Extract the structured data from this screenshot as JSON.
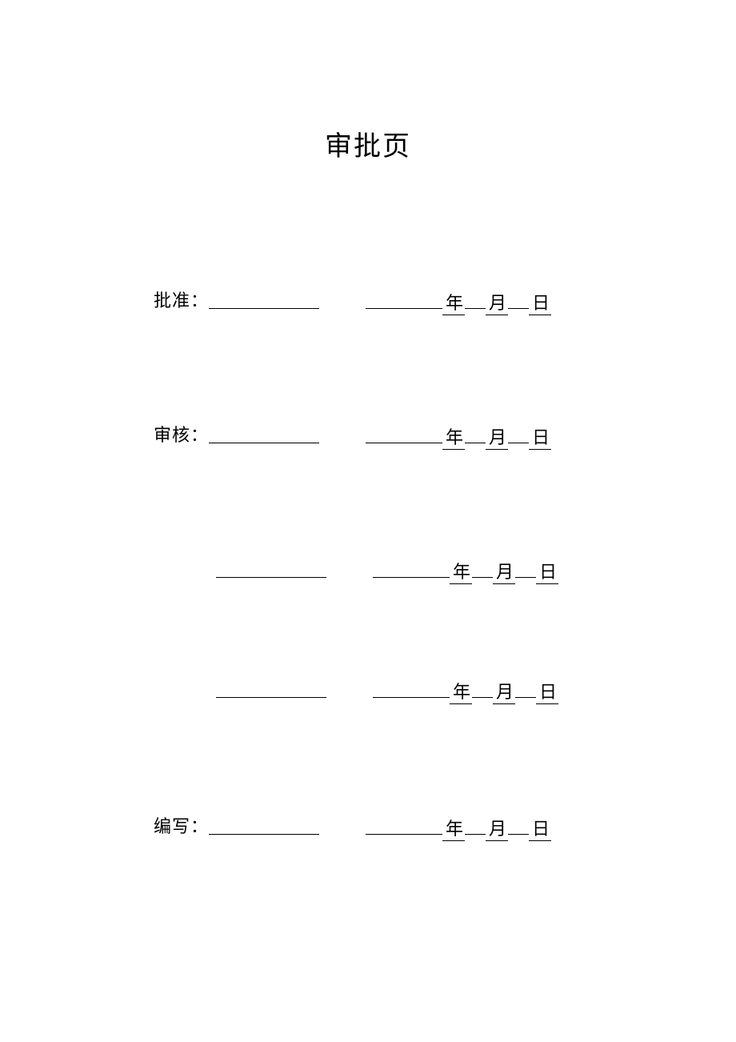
{
  "page": {
    "title": "审批页",
    "title_fontsize": 34,
    "body_fontsize": 22,
    "text_color": "#000000",
    "background_color": "#ffffff",
    "underline_color": "#000000",
    "underline_width": 1.5,
    "name_line_width": 138,
    "date_pre_line_width": 96,
    "date_gap_width": 26
  },
  "rows": [
    {
      "label": "批准：",
      "has_label": true,
      "year": "年",
      "month": "月",
      "day": "日"
    },
    {
      "label": "审核：",
      "has_label": true,
      "year": "年",
      "month": "月",
      "day": "日"
    },
    {
      "label": "",
      "has_label": false,
      "year": "年",
      "month": "月",
      "day": "日"
    },
    {
      "label": "",
      "has_label": false,
      "year": "年",
      "month": "月",
      "day": "日"
    },
    {
      "label": "编写：",
      "has_label": true,
      "year": "年",
      "month": "月",
      "day": "日"
    }
  ]
}
